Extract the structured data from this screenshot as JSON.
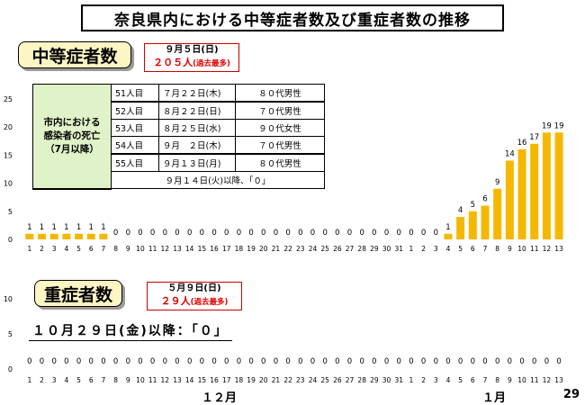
{
  "title": "奈良県内における中等症者数及び重症者数の推移",
  "page_number": "29",
  "months": {
    "dec": "１２月",
    "jan": "１月"
  },
  "moderate": {
    "label": "中等症者数",
    "peak_date": "９月５日(日)",
    "peak_value": "２０５人",
    "peak_note": "(過去最多)"
  },
  "severe": {
    "label": "重症者数",
    "peak_date": "５月９日(日)",
    "peak_value": "２９人",
    "peak_note": "(過去最多)",
    "since_note": "１０月２９日(金)以降：「０」"
  },
  "deaths_table": {
    "header": "市内における\n感染者の死亡\n（7月以降）",
    "rows": [
      {
        "ord": "51人目",
        "date": "７月２２日(木)",
        "age": "８０代男性"
      },
      {
        "ord": "52人目",
        "date": "８月２２日(日)",
        "age": "７０代男性"
      },
      {
        "ord": "53人目",
        "date": "８月２５日(水)",
        "age": "９０代女性"
      },
      {
        "ord": "54人目",
        "date": "９月　２日(木)",
        "age": "７０代男性"
      },
      {
        "ord": "55人目",
        "date": "９月１３日(月)",
        "age": "８０代男性"
      }
    ],
    "footer": "９月１４日(火)以降、「０」"
  },
  "chart_data": [
    {
      "type": "bar",
      "title": "",
      "xlabel": "",
      "ylabel": "",
      "ylim": [
        0,
        25
      ],
      "yticks": [
        0,
        5,
        10,
        15,
        20,
        25
      ],
      "categories": [
        "1",
        "2",
        "3",
        "4",
        "5",
        "6",
        "7",
        "8",
        "9",
        "10",
        "11",
        "12",
        "13",
        "14",
        "15",
        "16",
        "17",
        "18",
        "19",
        "20",
        "21",
        "22",
        "23",
        "24",
        "25",
        "26",
        "27",
        "28",
        "29",
        "30",
        "31",
        "1",
        "2",
        "3",
        "4",
        "5",
        "6",
        "7",
        "8",
        "9",
        "10",
        "11",
        "12",
        "13"
      ],
      "values": [
        1,
        1,
        1,
        1,
        1,
        1,
        1,
        0,
        0,
        0,
        0,
        0,
        0,
        0,
        0,
        0,
        0,
        0,
        0,
        0,
        0,
        0,
        0,
        0,
        0,
        0,
        0,
        0,
        0,
        0,
        0,
        0,
        0,
        0,
        1,
        4,
        5,
        6,
        9,
        14,
        16,
        17,
        19,
        19
      ],
      "color": "#f5b800"
    },
    {
      "type": "bar",
      "title": "",
      "xlabel": "",
      "ylabel": "",
      "ylim": [
        0,
        10
      ],
      "yticks": [
        0,
        5,
        10
      ],
      "categories": [
        "1",
        "2",
        "3",
        "4",
        "5",
        "6",
        "7",
        "8",
        "9",
        "10",
        "11",
        "12",
        "13",
        "14",
        "15",
        "16",
        "17",
        "18",
        "19",
        "20",
        "21",
        "22",
        "23",
        "24",
        "25",
        "26",
        "27",
        "28",
        "29",
        "30",
        "31",
        "1",
        "2",
        "3",
        "4",
        "5",
        "6",
        "7",
        "8",
        "9",
        "10",
        "11",
        "12",
        "13"
      ],
      "values": [
        0,
        0,
        0,
        0,
        0,
        0,
        0,
        0,
        0,
        0,
        0,
        0,
        0,
        0,
        0,
        0,
        0,
        0,
        0,
        0,
        0,
        0,
        0,
        0,
        0,
        0,
        0,
        0,
        0,
        0,
        0,
        0,
        0,
        0,
        0,
        0,
        0,
        0,
        0,
        0,
        0,
        0,
        0,
        0
      ],
      "color": "#c00000"
    }
  ]
}
